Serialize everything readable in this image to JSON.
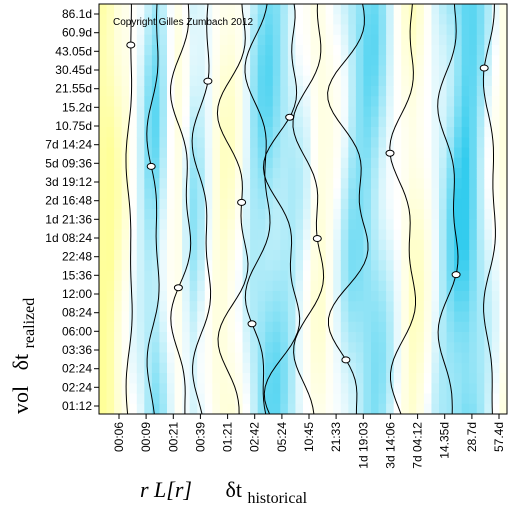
{
  "chart_data": {
    "type": "heatmap",
    "annotation": "Copyright Gilles Zumbach 2012",
    "x_tick_labels": [
      "00:06",
      "00:09",
      "00:21",
      "00:39",
      "01:21",
      "02:42",
      "05:24",
      "10:45",
      "21:33",
      "1d 19:03",
      "3d 14:06",
      "7d 04:12",
      "14.35d",
      "28.7d",
      "57.4d"
    ],
    "y_tick_labels": [
      "86.1d",
      "60.9d",
      "43.05d",
      "30.45d",
      "21.55d",
      "15.2d",
      "10.75d",
      "7d 14:24",
      "5d 09:36",
      "3d 19:12",
      "2d 16:48",
      "1d 21:36",
      "1d 08:24",
      "22:48",
      "15:36",
      "12:00",
      "08:24",
      "06:00",
      "03:36",
      "02:24",
      "02:24",
      "01:12"
    ],
    "xlabel": {
      "prefix": "r L[r]",
      "symbol": "δt",
      "subscript": "historical"
    },
    "ylabel": {
      "prefix": "vol",
      "symbol": "δt",
      "subscript": "realized"
    },
    "color_scale": {
      "low": "#ffff99",
      "mid": "#ffffff",
      "high": "#33ccee"
    },
    "column_profile": [
      -0.95,
      -0.9,
      -0.55,
      -0.3,
      0.0,
      0.2,
      0.45,
      0.55,
      0.3,
      0.0,
      -0.2,
      0.1,
      0.35,
      0.25,
      0.05,
      -0.25,
      -0.4,
      -0.35,
      -0.15,
      0.15,
      0.4,
      0.55,
      0.6,
      0.55,
      0.45,
      0.35,
      0.2,
      0.05,
      -0.2,
      -0.3,
      -0.15,
      0.05,
      0.25,
      0.45,
      0.55,
      0.6,
      0.55,
      0.4,
      0.2,
      0.0,
      -0.25,
      -0.45,
      -0.35,
      -0.1,
      0.15,
      0.35,
      0.55,
      0.75,
      0.85,
      0.7,
      0.45,
      0.2,
      0.0,
      -0.2
    ]
  }
}
